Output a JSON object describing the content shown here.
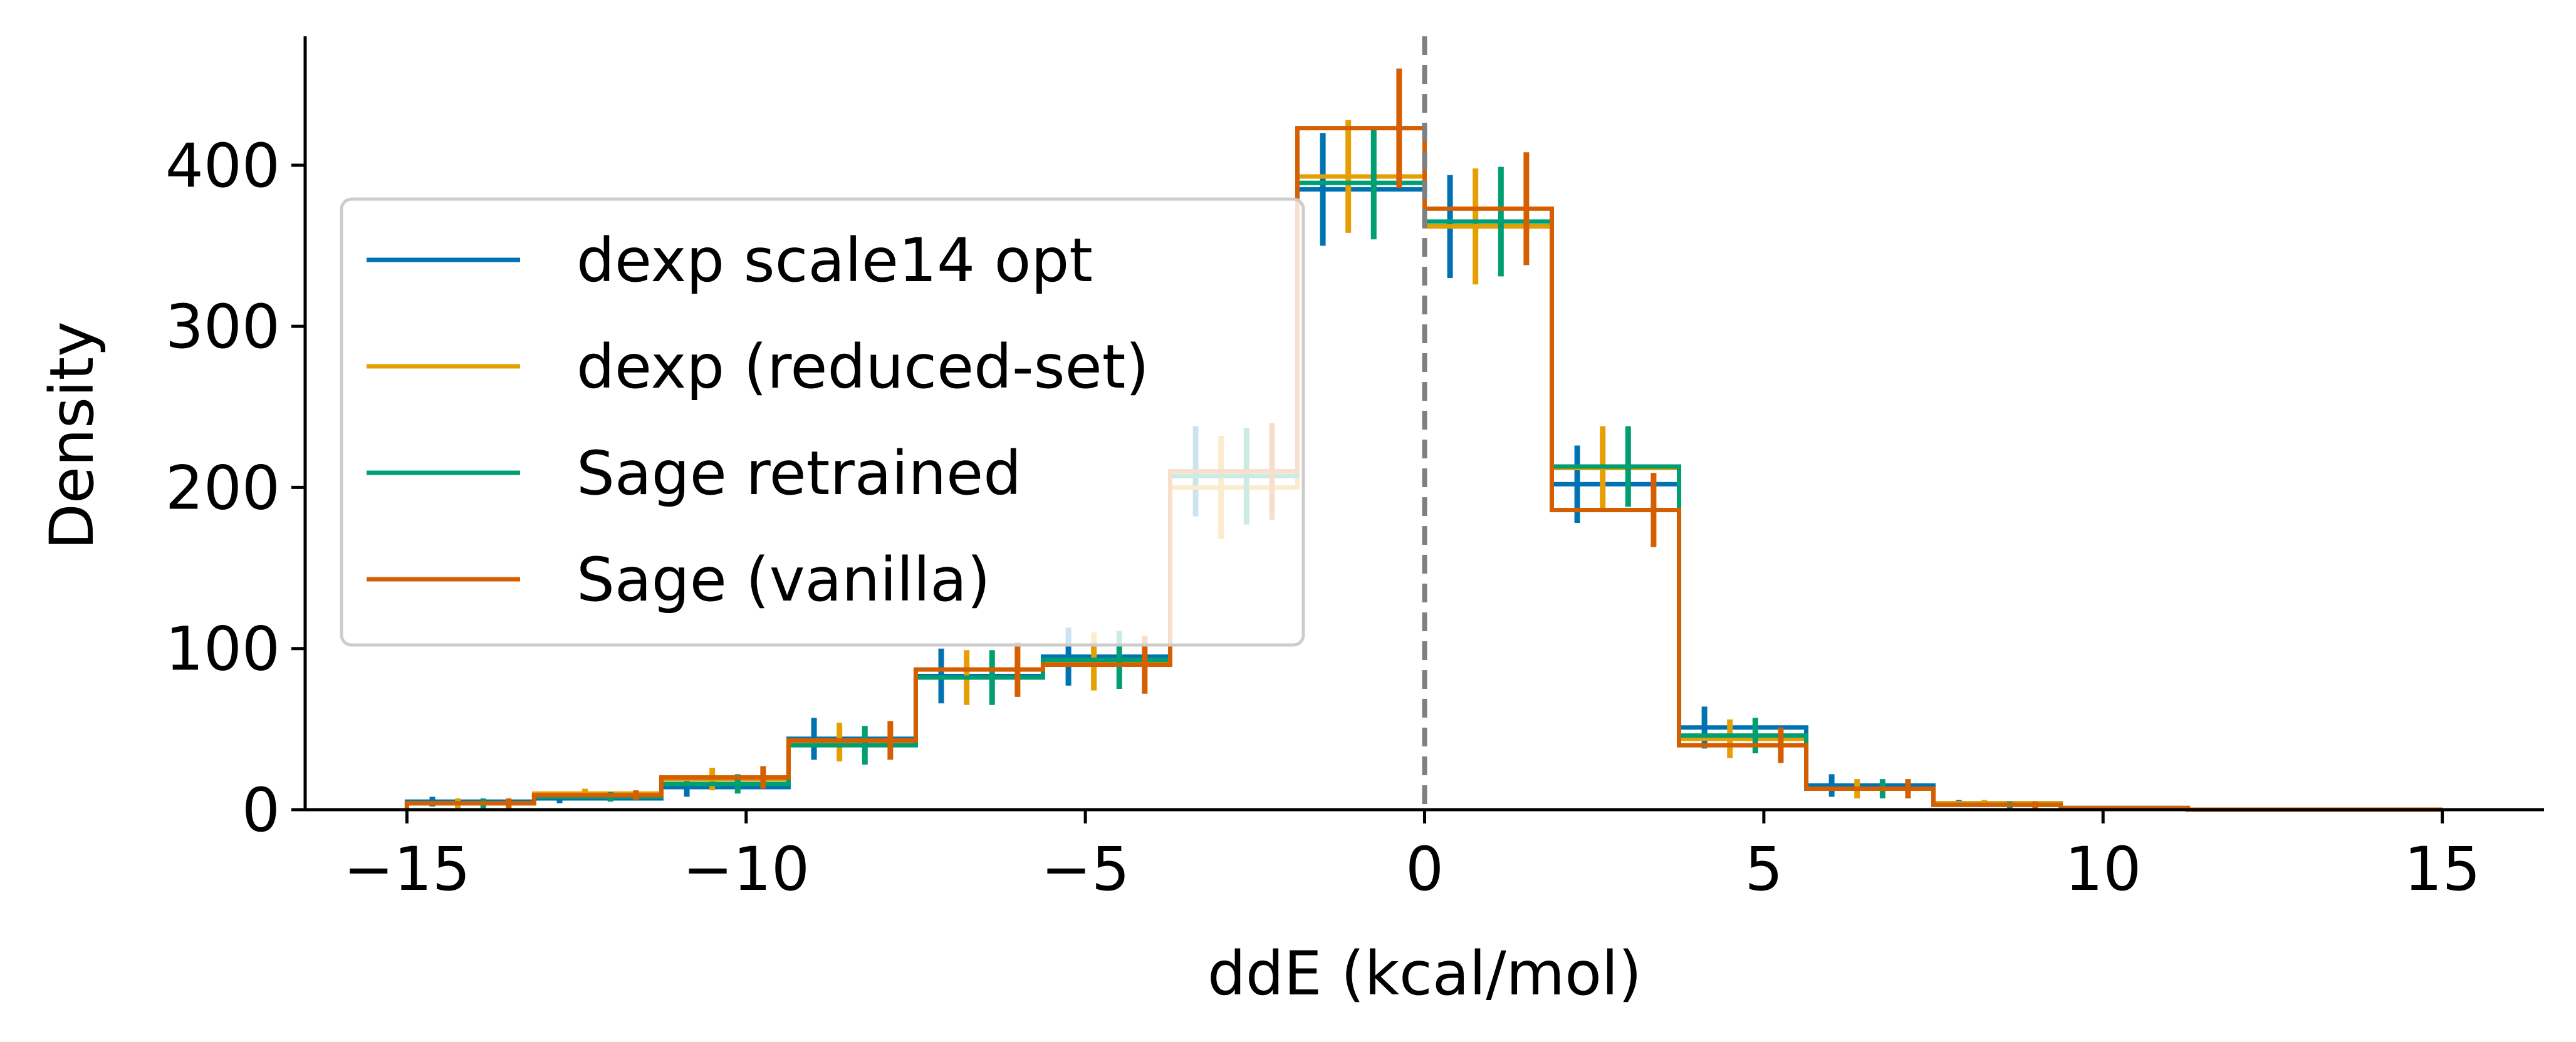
{
  "chart_data": {
    "type": "histogram",
    "title": "",
    "xlabel": "ddE (kcal/mol)",
    "ylabel": "Density",
    "xlim": [
      -16.5,
      16.5
    ],
    "ylim": [
      0,
      480
    ],
    "xticks": [
      -15,
      -10,
      -5,
      0,
      5,
      10,
      15
    ],
    "xtick_labels": [
      "−15",
      "−10",
      "−5",
      "0",
      "5",
      "10",
      "15"
    ],
    "yticks": [
      0,
      100,
      200,
      300,
      400
    ],
    "ytick_labels": [
      "0",
      "100",
      "200",
      "300",
      "400"
    ],
    "grid": false,
    "legend_position": "center-left",
    "reference_line": {
      "x": 0,
      "style": "dashed",
      "color": "#808080"
    },
    "bin_edges": [
      -15,
      -13.125,
      -11.25,
      -9.375,
      -7.5,
      -5.625,
      -3.75,
      -1.875,
      0,
      1.875,
      3.75,
      5.625,
      7.5,
      9.375,
      11.25,
      13.125,
      15
    ],
    "series": [
      {
        "name": "dexp scale14 opt",
        "color": "#0072B2",
        "values": [
          5,
          7,
          14,
          44,
          83,
          95,
          210,
          385,
          362,
          202,
          51,
          15,
          4,
          1,
          0,
          0
        ],
        "errors": [
          3,
          3,
          6,
          13,
          17,
          18,
          28,
          35,
          32,
          24,
          13,
          7,
          2,
          1,
          0,
          0
        ]
      },
      {
        "name": "dexp (reduced-set)",
        "color": "#E69F00",
        "values": [
          4,
          10,
          19,
          42,
          82,
          92,
          200,
          393,
          362,
          212,
          44,
          13,
          4,
          1,
          0,
          0
        ],
        "errors": [
          3,
          3,
          7,
          12,
          17,
          18,
          32,
          35,
          36,
          26,
          12,
          6,
          2,
          1,
          0,
          0
        ]
      },
      {
        "name": "Sage retrained",
        "color": "#009E73",
        "values": [
          4,
          8,
          16,
          40,
          82,
          93,
          207,
          389,
          365,
          213,
          46,
          13,
          3,
          1,
          0,
          0
        ],
        "errors": [
          3,
          3,
          6,
          12,
          17,
          18,
          30,
          35,
          34,
          25,
          11,
          6,
          2,
          1,
          0,
          0
        ]
      },
      {
        "name": "Sage (vanilla)",
        "color": "#D55E00",
        "values": [
          4,
          9,
          20,
          43,
          87,
          90,
          210,
          423,
          373,
          186,
          40,
          13,
          3,
          1,
          0,
          0
        ],
        "errors": [
          3,
          3,
          7,
          12,
          17,
          18,
          30,
          37,
          35,
          23,
          11,
          6,
          2,
          1,
          0,
          0
        ]
      }
    ]
  }
}
